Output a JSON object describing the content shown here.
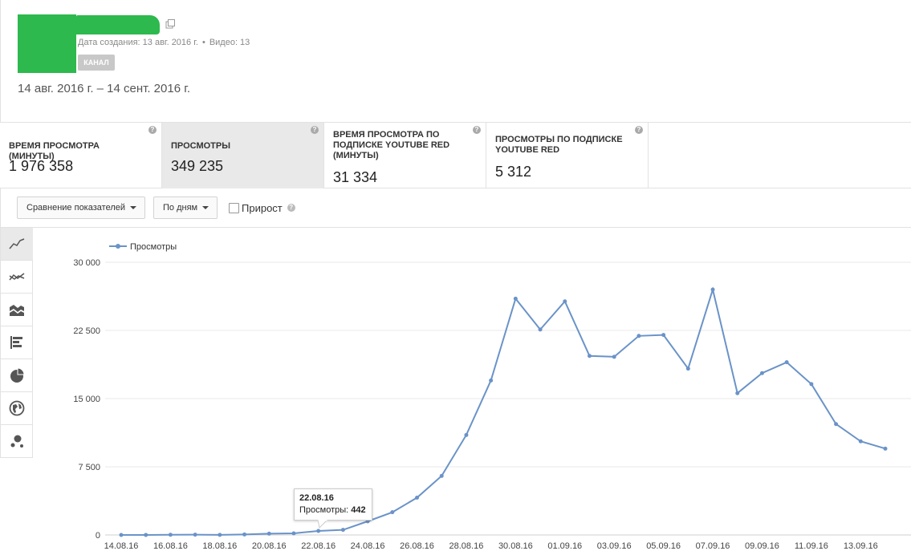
{
  "channel": {
    "created_label": "Дата создания: 13 авг. 2016 г.",
    "separator": "•",
    "videos_label": "Видео: 13",
    "badge": "КАНАЛ",
    "date_range": "14 авг. 2016 г. – 14 сент. 2016 г."
  },
  "metrics": [
    {
      "title": "ВРЕМЯ ПРОСМОТРА (МИНУТЫ)",
      "value": "1 976 358",
      "active": false
    },
    {
      "title": "ПРОСМОТРЫ",
      "value": "349 235",
      "active": true
    },
    {
      "title": "ВРЕМЯ ПРОСМОТРА ПО ПОДПИСКЕ YOUTUBE RED (МИНУТЫ)",
      "value": "31 334",
      "active": false
    },
    {
      "title": "ПРОСМОТРЫ ПО ПОДПИСКЕ YOUTUBE RED",
      "value": "5 312",
      "active": false
    }
  ],
  "help_glyph": "?",
  "controls": {
    "compare_label": "Сравнение показателей",
    "period_label": "По дням",
    "growth_label": "Прирост"
  },
  "chart_tools": [
    "line-chart-icon",
    "multi-line-chart-icon",
    "stacked-area-icon",
    "bar-chart-icon",
    "pie-chart-icon",
    "globe-icon",
    "bubble-chart-icon"
  ],
  "tooltip": {
    "date": "22.08.16",
    "label": "Просмотры: ",
    "value": "442"
  },
  "colors": {
    "series": "#6a93c8",
    "grid": "#e8e8e8",
    "avatar": "#2db94d"
  },
  "chart_data": {
    "type": "line",
    "series": [
      {
        "name": "Просмотры",
        "values": [
          0,
          5,
          20,
          30,
          10,
          60,
          140,
          180,
          442,
          560,
          1500,
          2500,
          4100,
          6500,
          11000,
          17000,
          26000,
          22600,
          25700,
          19700,
          19600,
          21900,
          22000,
          18300,
          27000,
          15600,
          17800,
          19000,
          16600,
          12200,
          10300,
          9500
        ]
      }
    ],
    "x": [
      "14.08.16",
      "15.08.16",
      "16.08.16",
      "17.08.16",
      "18.08.16",
      "19.08.16",
      "20.08.16",
      "21.08.16",
      "22.08.16",
      "23.08.16",
      "24.08.16",
      "25.08.16",
      "26.08.16",
      "27.08.16",
      "28.08.16",
      "29.08.16",
      "30.08.16",
      "31.08.16",
      "01.09.16",
      "02.09.16",
      "03.09.16",
      "04.09.16",
      "05.09.16",
      "06.09.16",
      "07.09.16",
      "08.09.16",
      "09.09.16",
      "10.09.16",
      "11.09.16",
      "12.09.16",
      "13.09.16",
      "14.09.16"
    ],
    "x_tick_labels": [
      "14.08.16",
      "16.08.16",
      "18.08.16",
      "20.08.16",
      "22.08.16",
      "24.08.16",
      "26.08.16",
      "28.08.16",
      "30.08.16",
      "01.09.16",
      "03.09.16",
      "05.09.16",
      "07.09.16",
      "09.09.16",
      "11.09.16",
      "13.09.16"
    ],
    "y_ticks": [
      "0",
      "7 500",
      "15 000",
      "22 500",
      "30 000"
    ],
    "y_tick_values": [
      0,
      7500,
      15000,
      22500,
      30000
    ],
    "ylim": [
      0,
      30000
    ],
    "grid": true,
    "legend": "top-left"
  }
}
